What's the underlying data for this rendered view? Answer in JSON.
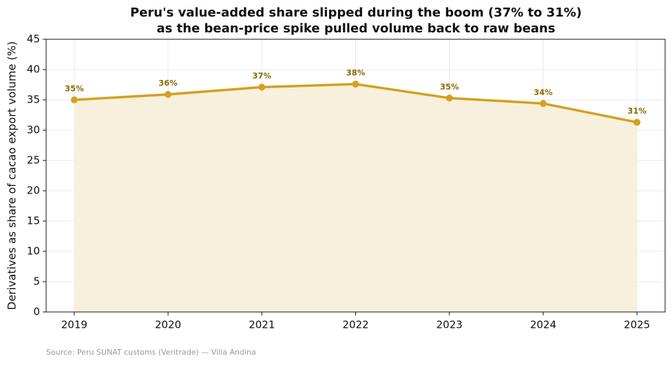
{
  "chart_data": {
    "type": "line",
    "title": [
      "Peru's value-added share slipped during the boom (37% to 31%)",
      "as the bean-price spike pulled volume back to raw beans"
    ],
    "y_label": "Derivatives as share of cacao export volume (%)",
    "source": "Source: Peru SUNAT customs (Veritrade) — Villa Andina",
    "x": [
      2019,
      2020,
      2021,
      2022,
      2023,
      2024,
      2025
    ],
    "series": [
      {
        "color": "#d4a020",
        "fill": "#f7f0dc",
        "label_color": "#8b6a00",
        "values": [
          35.0,
          35.9,
          37.1,
          37.6,
          35.3,
          34.4,
          31.3
        ],
        "value_labels": [
          "35%",
          "36%",
          "37%",
          "38%",
          "35%",
          "34%",
          "31%"
        ]
      }
    ],
    "xlim": [
      2018.7,
      2025.3
    ],
    "xticks": [
      2019,
      2020,
      2021,
      2022,
      2023,
      2024,
      2025
    ],
    "ylim": [
      0,
      45
    ],
    "yticks": [
      0,
      5,
      10,
      15,
      20,
      25,
      30,
      35,
      40,
      45
    ],
    "grid": true
  }
}
